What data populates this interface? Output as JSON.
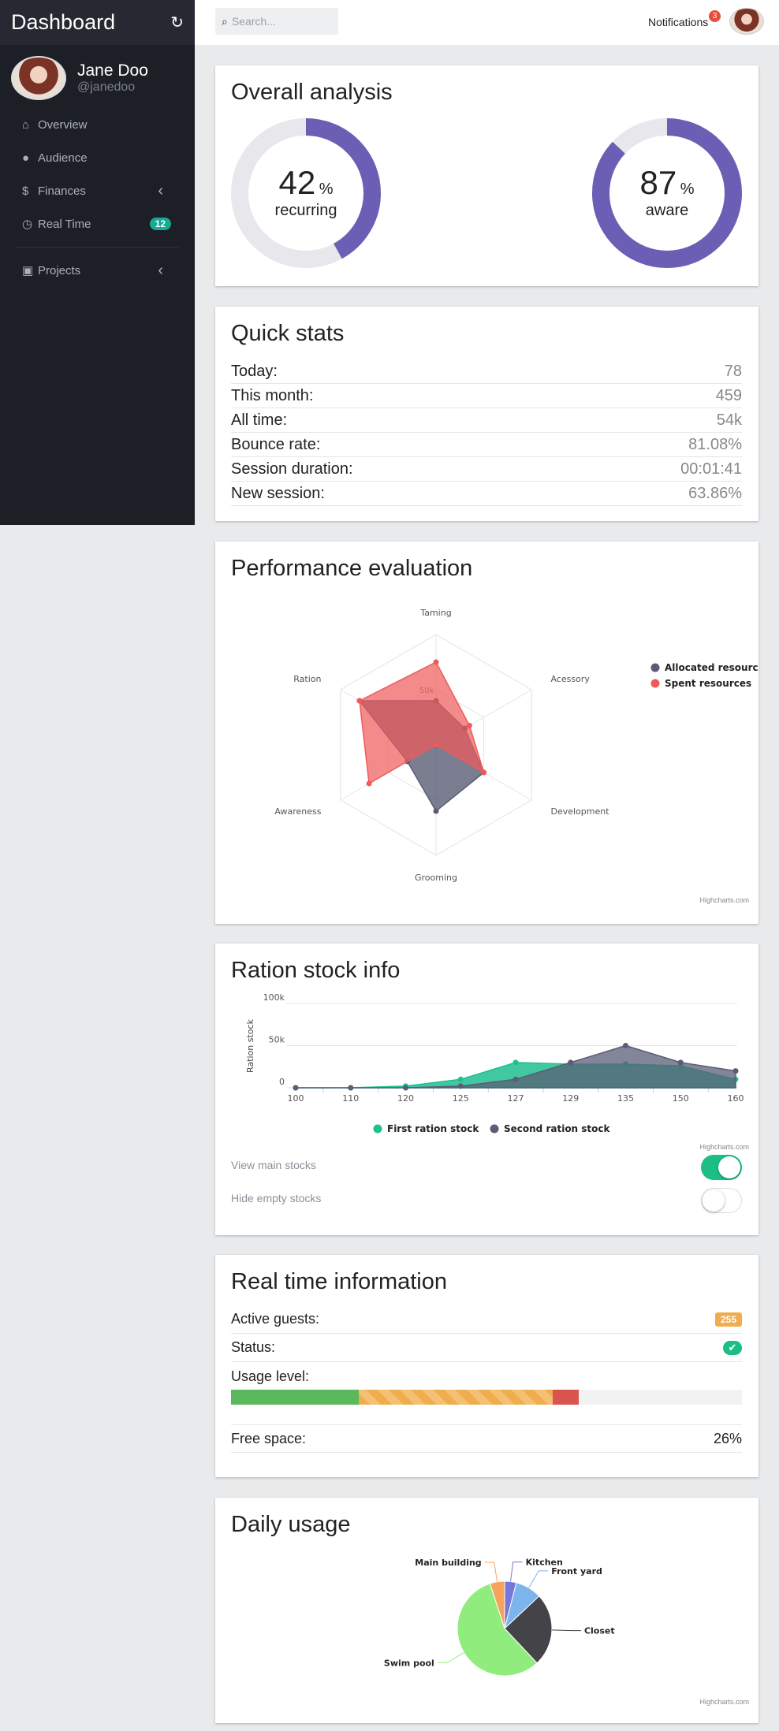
{
  "sidebar": {
    "title": "Dashboard",
    "user": {
      "name": "Jane Doo",
      "handle": "@janedoo"
    },
    "items": [
      {
        "label": "Overview",
        "icon": "home-icon"
      },
      {
        "label": "Audience",
        "icon": "user-icon"
      },
      {
        "label": "Finances",
        "icon": "dollar-icon"
      },
      {
        "label": "Real Time",
        "icon": "clock-icon",
        "badge": "12"
      },
      {
        "label": "Projects",
        "icon": "briefcase-icon"
      }
    ]
  },
  "topbar": {
    "search_placeholder": "Search...",
    "notifications_label": "Notifications",
    "notifications_count": "3"
  },
  "overall": {
    "title": "Overall analysis",
    "recurring": {
      "value": "42",
      "unit": "%",
      "label": "recurring",
      "fraction": 0.42
    },
    "aware": {
      "value": "87",
      "unit": "%",
      "label": "aware",
      "fraction": 0.87
    },
    "accent": "#6b5eb5"
  },
  "quick_stats": {
    "title": "Quick stats",
    "rows": [
      {
        "label": "Today:",
        "value": "78"
      },
      {
        "label": "This month:",
        "value": "459"
      },
      {
        "label": "All time:",
        "value": "54k"
      },
      {
        "label": "Bounce rate:",
        "value": "81.08%"
      },
      {
        "label": "Session duration:",
        "value": "00:01:41"
      },
      {
        "label": "New session:",
        "value": "63.86%"
      }
    ]
  },
  "performance": {
    "title": "Performance evaluation",
    "credit": "Highcharts.com"
  },
  "ration": {
    "title": "Ration stock info",
    "credit": "Highcharts.com",
    "toggles": [
      {
        "label": "View main stocks",
        "on": true
      },
      {
        "label": "Hide empty stocks",
        "on": false
      }
    ]
  },
  "realtime": {
    "title": "Real time information",
    "active_guests_label": "Active guests:",
    "active_guests_value": "255",
    "status_label": "Status:",
    "status_icon": "check-icon",
    "usage_label": "Usage level:",
    "usage_segments": [
      0.25,
      0.38,
      0.05
    ],
    "free_space_label": "Free space:",
    "free_space_value": "26%"
  },
  "daily": {
    "title": "Daily usage",
    "credit": "Highcharts.com"
  },
  "chart_data": [
    {
      "type": "radar",
      "categories": [
        "Taming",
        "Acessory",
        "Development",
        "Grooming",
        "Awareness",
        "Ration"
      ],
      "rlim": [
        0,
        100
      ],
      "radial_ticks": [
        "0",
        "50k"
      ],
      "series": [
        {
          "name": "Allocated resources",
          "color": "#5a5d75",
          "values": [
            40,
            30,
            50,
            60,
            30,
            80
          ]
        },
        {
          "name": "Spent resources",
          "color": "#ef5a5a",
          "values": [
            75,
            35,
            50,
            0,
            70,
            80
          ]
        }
      ],
      "legend": "right"
    },
    {
      "type": "area",
      "categories": [
        "100",
        "110",
        "120",
        "125",
        "127",
        "129",
        "135",
        "150",
        "160"
      ],
      "ylabel": "Ration stock",
      "y_ticks": [
        "0",
        "50k",
        "100k"
      ],
      "ylim": [
        0,
        100000
      ],
      "series": [
        {
          "name": "First ration stock",
          "color": "#1fbf8f",
          "values": [
            0,
            0,
            2000,
            10000,
            30000,
            28000,
            28000,
            26000,
            10000
          ]
        },
        {
          "name": "Second ration stock",
          "color": "#5a5d75",
          "values": [
            0,
            0,
            0,
            2000,
            10000,
            30000,
            50000,
            30000,
            20000
          ]
        }
      ],
      "legend": "bottom"
    },
    {
      "type": "pie",
      "labels": [
        "Kitchen",
        "Front yard",
        "Closet",
        "Swim pool",
        "Main building"
      ],
      "values": [
        4,
        9,
        25,
        57,
        5
      ],
      "colors": [
        "#7478d8",
        "#7cb5ec",
        "#434348",
        "#90ed7d",
        "#f7a35c"
      ]
    }
  ]
}
